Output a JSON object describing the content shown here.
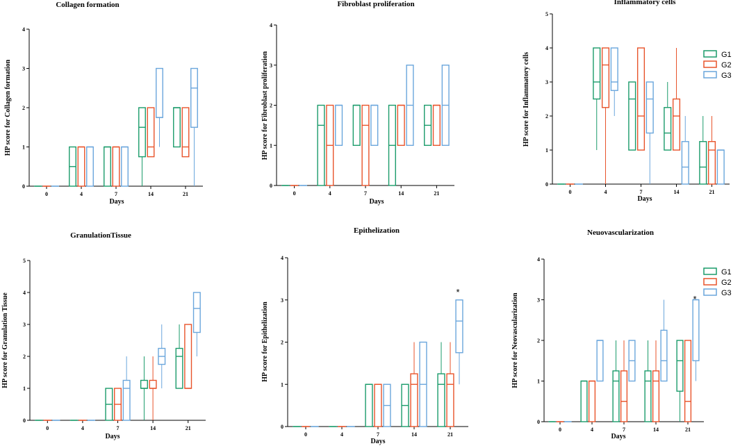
{
  "colors": {
    "G1": "#1a9b6a",
    "G2": "#e8532a",
    "G3": "#6aa6dc"
  },
  "chart_data": [
    {
      "type": "boxplot",
      "title": "Collagen formation",
      "xlabel": "Days",
      "ylabel": "HP score for Collagen formation",
      "ylim": [
        0,
        4
      ],
      "yticks": [
        "0",
        "1",
        "2",
        "3",
        "4"
      ],
      "categories": [
        "0",
        "4",
        "7",
        "14",
        "21"
      ],
      "legend": [],
      "annotations": [],
      "series": [
        {
          "name": "G1",
          "boxes": [
            [
              0,
              0,
              0,
              0,
              0
            ],
            [
              0,
              0,
              0.5,
              1,
              1
            ],
            [
              0,
              0,
              1,
              1,
              1
            ],
            [
              0,
              0.75,
              1.5,
              2,
              2
            ],
            [
              1,
              1,
              2,
              2,
              2
            ]
          ]
        },
        {
          "name": "G2",
          "boxes": [
            [
              0,
              0,
              0,
              0,
              0
            ],
            [
              0,
              0,
              1,
              1,
              1
            ],
            [
              0,
              0,
              1,
              1,
              1
            ],
            [
              0.75,
              0.75,
              1,
              2,
              2
            ],
            [
              0.75,
              0.75,
              1,
              2,
              2
            ]
          ]
        },
        {
          "name": "G3",
          "boxes": [
            [
              0,
              0,
              0,
              0,
              0
            ],
            [
              0,
              0,
              1,
              1,
              1
            ],
            [
              0,
              0,
              1,
              1,
              1
            ],
            [
              1,
              1.75,
              1.75,
              3,
              3
            ],
            [
              0,
              1.5,
              2.5,
              3,
              3
            ]
          ]
        }
      ]
    },
    {
      "type": "boxplot",
      "title": "Fibroblast proliferation",
      "xlabel": "Days",
      "ylabel": "HP score for Fibroblast proliferation",
      "ylim": [
        0,
        4
      ],
      "yticks": [
        "0",
        "1",
        "2",
        "3",
        "4"
      ],
      "categories": [
        "0",
        "4",
        "7",
        "14",
        "21"
      ],
      "legend": [],
      "annotations": [],
      "series": [
        {
          "name": "G1",
          "boxes": [
            [
              0,
              0,
              0,
              0,
              0
            ],
            [
              0,
              0,
              1.5,
              2,
              2
            ],
            [
              1,
              1,
              2,
              2,
              2
            ],
            [
              0,
              0,
              1,
              2,
              2
            ],
            [
              1,
              1,
              1.5,
              2,
              2
            ]
          ]
        },
        {
          "name": "G2",
          "boxes": [
            [
              0,
              0,
              0,
              0,
              0
            ],
            [
              0,
              0,
              1,
              2,
              2
            ],
            [
              0,
              0,
              1.5,
              2,
              2
            ],
            [
              1,
              1,
              2,
              2,
              2
            ],
            [
              1,
              1,
              2,
              2,
              2
            ]
          ]
        },
        {
          "name": "G3",
          "boxes": [
            [
              0,
              0,
              0,
              0,
              0
            ],
            [
              1,
              1,
              2,
              2,
              2
            ],
            [
              1,
              1,
              2,
              2,
              2
            ],
            [
              1,
              1,
              2,
              3,
              3
            ],
            [
              1,
              1,
              2,
              3,
              3
            ]
          ]
        }
      ]
    },
    {
      "type": "boxplot",
      "title": "Inflammatory cells",
      "xlabel": "Days",
      "ylabel": "HP score for Inflammatory cells",
      "ylim": [
        0,
        5
      ],
      "yticks": [
        "0",
        "1",
        "2",
        "3",
        "4",
        "5"
      ],
      "categories": [
        "0",
        "4",
        "7",
        "14",
        "21"
      ],
      "legend": [
        "G1",
        "G2",
        "G3"
      ],
      "annotations": [],
      "series": [
        {
          "name": "G1",
          "boxes": [
            [
              0,
              0,
              0,
              0,
              0
            ],
            [
              1,
              2.5,
              3,
              4,
              4
            ],
            [
              1,
              1,
              2.5,
              3,
              3
            ],
            [
              1,
              1,
              1.5,
              2.25,
              3
            ],
            [
              0,
              0,
              0.5,
              1.25,
              2
            ]
          ]
        },
        {
          "name": "G2",
          "boxes": [
            [
              0,
              0,
              0,
              0,
              0
            ],
            [
              0,
              2.25,
              3.5,
              4,
              4
            ],
            [
              1,
              1,
              2,
              4,
              4
            ],
            [
              1,
              1,
              2,
              2.5,
              4
            ],
            [
              0,
              0,
              1,
              1.25,
              2
            ]
          ]
        },
        {
          "name": "G3",
          "boxes": [
            [
              0,
              0,
              0,
              0,
              0
            ],
            [
              2,
              2.75,
              3,
              4,
              4
            ],
            [
              0,
              1.5,
              2.5,
              3,
              3
            ],
            [
              0,
              0,
              0.5,
              1.25,
              2
            ],
            [
              0,
              0,
              1,
              1,
              1
            ]
          ]
        }
      ]
    },
    {
      "type": "boxplot",
      "title": "GranulationTissue",
      "xlabel": "Days",
      "ylabel": "HP score for Granulation Tissue",
      "ylim": [
        0,
        5
      ],
      "yticks": [
        "0",
        "1",
        "2",
        "3",
        "4",
        "5"
      ],
      "categories": [
        "0",
        "4",
        "7",
        "14",
        "21"
      ],
      "legend": [],
      "annotations": [],
      "series": [
        {
          "name": "G1",
          "boxes": [
            [
              0,
              0,
              0,
              0,
              0
            ],
            [
              0,
              0,
              0,
              0,
              0
            ],
            [
              0,
              0,
              0.5,
              1,
              1
            ],
            [
              0,
              1,
              1,
              1.25,
              2
            ],
            [
              1,
              1,
              2,
              2.25,
              3
            ]
          ]
        },
        {
          "name": "G2",
          "boxes": [
            [
              0,
              0,
              0,
              0,
              0
            ],
            [
              0,
              0,
              0,
              0,
              0
            ],
            [
              0,
              0,
              0.5,
              1,
              1
            ],
            [
              0,
              1,
              1,
              1.25,
              2
            ],
            [
              1,
              1,
              1,
              3,
              3
            ]
          ]
        },
        {
          "name": "G3",
          "boxes": [
            [
              0,
              0,
              0,
              0,
              0
            ],
            [
              0,
              0,
              0,
              0,
              0
            ],
            [
              0,
              0,
              1,
              1.25,
              2
            ],
            [
              1,
              1.75,
              2,
              2.25,
              3
            ],
            [
              2,
              2.75,
              3.5,
              4,
              4
            ]
          ]
        }
      ]
    },
    {
      "type": "boxplot",
      "title": "Epithelization",
      "xlabel": "Days",
      "ylabel": "HP score for Epithelization",
      "ylim": [
        0,
        4
      ],
      "yticks": [
        "0",
        "1",
        "2",
        "3",
        "4"
      ],
      "categories": [
        "0",
        "4",
        "7",
        "14",
        "21"
      ],
      "legend": [],
      "annotations": [
        "*"
      ],
      "series": [
        {
          "name": "G1",
          "boxes": [
            [
              0,
              0,
              0,
              0,
              0
            ],
            [
              0,
              0,
              0,
              0,
              0
            ],
            [
              0,
              0,
              1,
              1,
              1
            ],
            [
              0,
              0,
              0.5,
              1,
              1
            ],
            [
              0,
              0,
              1,
              1.25,
              2
            ]
          ]
        },
        {
          "name": "G2",
          "boxes": [
            [
              0,
              0,
              0,
              0,
              0
            ],
            [
              0,
              0,
              0,
              0,
              0
            ],
            [
              0,
              0,
              1,
              1,
              1
            ],
            [
              0,
              0,
              1,
              1.25,
              2
            ],
            [
              0,
              0,
              1,
              1.25,
              2
            ]
          ]
        },
        {
          "name": "G3",
          "boxes": [
            [
              0,
              0,
              0,
              0,
              0
            ],
            [
              0,
              0,
              0,
              0,
              0
            ],
            [
              0,
              0,
              0.5,
              1,
              1
            ],
            [
              0,
              0,
              1,
              2,
              2
            ],
            [
              1,
              1.75,
              2.5,
              3,
              3
            ]
          ]
        }
      ]
    },
    {
      "type": "boxplot",
      "title": "Neuovascularization",
      "xlabel": "Days",
      "ylabel": "HP score for Neovascularization",
      "ylim": [
        0,
        4
      ],
      "yticks": [
        "0",
        "1",
        "2",
        "3",
        "4"
      ],
      "categories": [
        "0",
        "4",
        "7",
        "14",
        "21"
      ],
      "legend": [
        "G1",
        "G2",
        "G3"
      ],
      "annotations": [
        "*"
      ],
      "series": [
        {
          "name": "G1",
          "boxes": [
            [
              0,
              0,
              0,
              0,
              0
            ],
            [
              0,
              0,
              1,
              1,
              1
            ],
            [
              0,
              0,
              1,
              1.25,
              2
            ],
            [
              0,
              0,
              1,
              1.25,
              2
            ],
            [
              0,
              0.75,
              1.5,
              2,
              2
            ]
          ]
        },
        {
          "name": "G2",
          "boxes": [
            [
              0,
              0,
              0,
              0,
              0
            ],
            [
              0,
              0,
              1,
              1,
              1
            ],
            [
              0,
              0,
              0.5,
              1.25,
              2
            ],
            [
              0,
              0,
              1,
              1.25,
              2
            ],
            [
              0,
              0,
              0.5,
              2,
              2
            ]
          ]
        },
        {
          "name": "G3",
          "boxes": [
            [
              0,
              0,
              0,
              0,
              0
            ],
            [
              1,
              1,
              2,
              2,
              2
            ],
            [
              1,
              1,
              1.5,
              2,
              2
            ],
            [
              1,
              1,
              1.5,
              2.25,
              3
            ],
            [
              1,
              1.5,
              3,
              3,
              3
            ]
          ]
        }
      ]
    }
  ]
}
